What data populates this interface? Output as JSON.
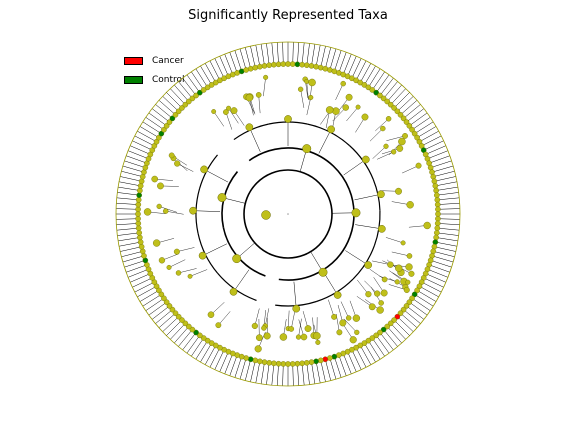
{
  "title": "Significantly Represented Taxa",
  "legend": [
    {
      "label": "Cancer",
      "color": "#ff0000"
    },
    {
      "label": "Control",
      "color": "#008000"
    }
  ],
  "colors": {
    "nonsignificant_node": "#bfbf1a",
    "node_outline": "#6b6b00",
    "branch": "#000000",
    "outer_tick": "#000000",
    "outer_ring": "#9a9a00"
  },
  "diagram": {
    "type": "circular-cladogram",
    "leaf_count": 200,
    "highlighted": [
      {
        "group": "Cancer",
        "color": "#ff0000",
        "count": 2
      },
      {
        "group": "Control",
        "color": "#008000",
        "count": 16
      }
    ]
  }
}
